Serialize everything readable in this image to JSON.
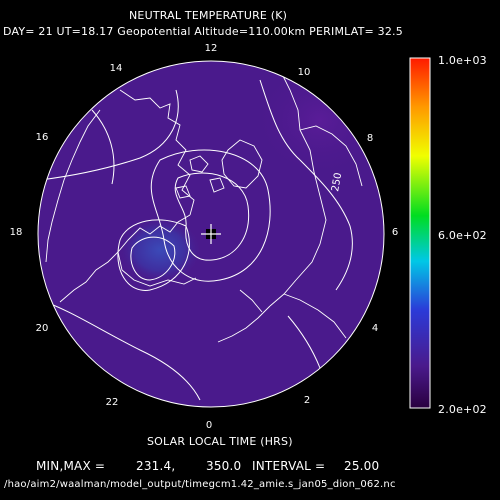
{
  "title": "NEUTRAL TEMPERATURE (K)",
  "subtitle": "DAY= 21 UT=18.17 Geopotential Altitude=110.00km PERIMLAT= 32.5",
  "hour_labels": [
    {
      "hour": "12"
    },
    {
      "hour": "10"
    },
    {
      "hour": "8"
    },
    {
      "hour": "6"
    },
    {
      "hour": "4"
    },
    {
      "hour": "2"
    },
    {
      "hour": "0"
    },
    {
      "hour": "22"
    },
    {
      "hour": "20"
    },
    {
      "hour": "18"
    },
    {
      "hour": "16"
    },
    {
      "hour": "14"
    }
  ],
  "contour_label": "250",
  "colorbar": {
    "labels": [
      "1.0e+03",
      "6.0e+02",
      "2.0e+02"
    ],
    "min": 200,
    "max": 1000
  },
  "xlabel": "SOLAR LOCAL TIME (HRS)",
  "stats": {
    "minmax_label": "MIN,MAX =",
    "min": "231.4,",
    "max": "350.0",
    "interval_label": "INTERVAL =",
    "interval": "25.00"
  },
  "filepath": "/hao/aim2/waalman/model_output/timegcm1.42_amie.s_jan05_dion_062.nc",
  "colors": {
    "field": "#4a1a8c",
    "cold_core": "#3a3aa8",
    "contour": "#ffffff",
    "background": "#000000"
  }
}
